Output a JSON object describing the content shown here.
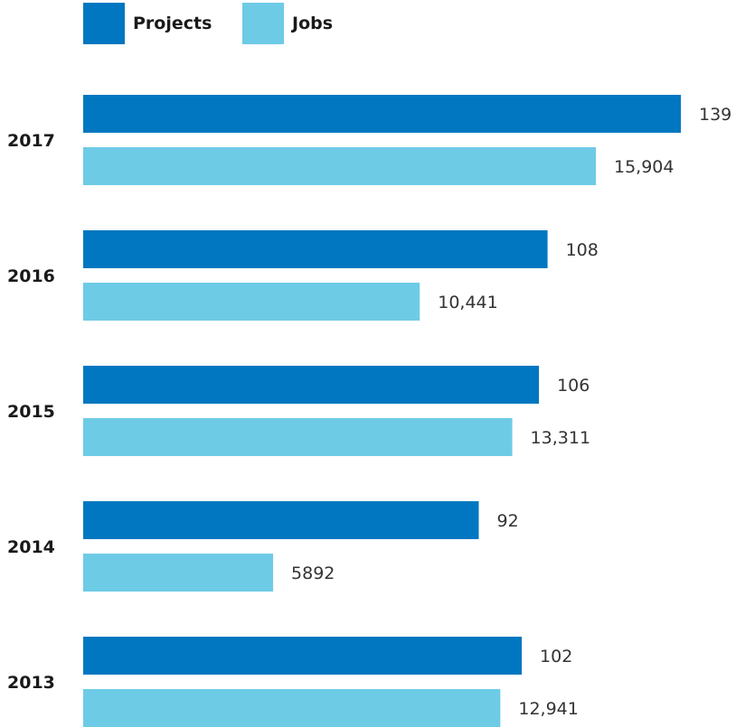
{
  "chart_data": {
    "type": "bar",
    "orientation": "horizontal",
    "categories": [
      "2017",
      "2016",
      "2015",
      "2014",
      "2013"
    ],
    "series": [
      {
        "name": "Projects",
        "color": "#0077c0",
        "values": [
          139,
          108,
          106,
          92,
          102
        ],
        "labels": [
          "139",
          "108",
          "106",
          "92",
          "102"
        ]
      },
      {
        "name": "Jobs",
        "color": "#6ecbe6",
        "values": [
          15904,
          10441,
          13311,
          5892,
          12941
        ],
        "labels": [
          "15,904",
          "10,441",
          "13,311",
          "5892",
          "12,941"
        ]
      }
    ],
    "legend_position": "top-left",
    "grid": false,
    "axes_visible": false
  }
}
